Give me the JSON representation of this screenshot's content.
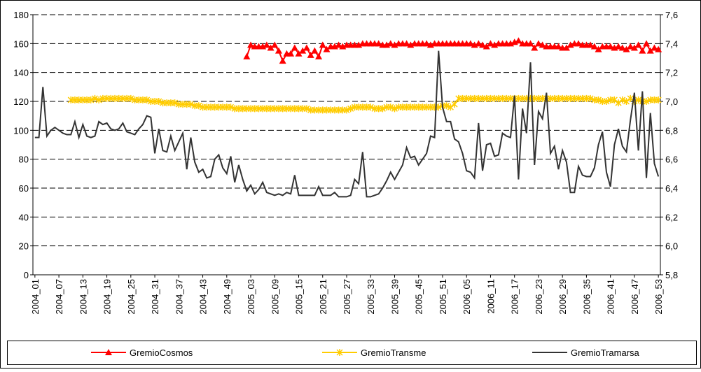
{
  "chart_data": {
    "type": "line",
    "categories": [
      "2004_01",
      null,
      null,
      null,
      null,
      null,
      "2004_07",
      null,
      null,
      null,
      null,
      null,
      "2004_13",
      null,
      null,
      null,
      null,
      null,
      "2004_19",
      null,
      null,
      null,
      null,
      null,
      "2004_25",
      null,
      null,
      null,
      null,
      null,
      "2004_31",
      null,
      null,
      null,
      null,
      null,
      "2004_37",
      null,
      null,
      null,
      null,
      null,
      "2004_43",
      null,
      null,
      null,
      null,
      null,
      "2004_49",
      null,
      null,
      null,
      null,
      null,
      "2005_03",
      null,
      null,
      null,
      null,
      null,
      "2005_09",
      null,
      null,
      null,
      null,
      null,
      "2005_15",
      null,
      null,
      null,
      null,
      null,
      "2005_21",
      null,
      null,
      null,
      null,
      null,
      "2005_27",
      null,
      null,
      null,
      null,
      null,
      "2005_33",
      null,
      null,
      null,
      null,
      null,
      "2005_39",
      null,
      null,
      null,
      null,
      null,
      "2005_45",
      null,
      null,
      null,
      null,
      null,
      "2005_51",
      null,
      null,
      null,
      null,
      null,
      "2006_05",
      null,
      null,
      null,
      null,
      null,
      "2006_11",
      null,
      null,
      null,
      null,
      null,
      "2006_17",
      null,
      null,
      null,
      null,
      null,
      "2006_23",
      null,
      null,
      null,
      null,
      null,
      "2006_29",
      null,
      null,
      null,
      null,
      null,
      "2006_35",
      null,
      null,
      null,
      null,
      null,
      "2006_41",
      null,
      null,
      null,
      null,
      null,
      "2006_47",
      null,
      null,
      null,
      null,
      null,
      "2006_53"
    ],
    "ylim": [
      0,
      180
    ],
    "yticks": [
      0,
      20,
      40,
      60,
      80,
      100,
      120,
      140,
      160,
      180
    ],
    "y2lim": [
      5.8,
      7.6
    ],
    "y2ticks": [
      {
        "value": 5.8,
        "label": "5,8"
      },
      {
        "value": 6.0,
        "label": "6,0"
      },
      {
        "value": 6.2,
        "label": "6,2"
      },
      {
        "value": 6.4,
        "label": "6,4"
      },
      {
        "value": 6.6,
        "label": "6,6"
      },
      {
        "value": 6.8,
        "label": "6,8"
      },
      {
        "value": 7.0,
        "label": "7,0"
      },
      {
        "value": 7.2,
        "label": "7,2"
      },
      {
        "value": 7.4,
        "label": "7,4"
      },
      {
        "value": 7.6,
        "label": "7,6"
      }
    ],
    "grid": true,
    "legend": "bottom",
    "series": [
      {
        "name": "GremioCosmos",
        "color": "#ff0000",
        "marker": "triangle",
        "values": [
          null,
          null,
          null,
          null,
          null,
          null,
          null,
          null,
          null,
          null,
          null,
          null,
          null,
          null,
          null,
          null,
          null,
          null,
          null,
          null,
          null,
          null,
          null,
          null,
          null,
          null,
          null,
          null,
          null,
          null,
          null,
          null,
          null,
          null,
          null,
          null,
          null,
          null,
          null,
          null,
          null,
          null,
          null,
          null,
          null,
          null,
          null,
          null,
          null,
          null,
          null,
          null,
          null,
          151,
          159,
          158,
          158,
          158,
          159,
          157,
          159,
          155,
          148,
          153,
          153,
          157,
          153,
          155,
          157,
          152,
          155,
          151,
          159,
          156,
          158,
          158,
          159,
          158,
          159,
          159,
          159,
          159,
          160,
          160,
          160,
          160,
          160,
          159,
          159,
          160,
          159,
          160,
          160,
          160,
          159,
          160,
          160,
          160,
          160,
          159,
          160,
          160,
          160,
          160,
          160,
          160,
          160,
          160,
          160,
          160,
          159,
          160,
          159,
          158,
          160,
          159,
          160,
          160,
          160,
          160,
          161,
          162,
          160,
          160,
          160,
          157,
          160,
          159,
          158,
          158,
          158,
          158,
          157,
          157,
          159,
          160,
          160,
          159,
          159,
          159,
          158,
          156,
          158,
          158,
          158,
          157,
          158,
          157,
          156,
          158,
          157,
          159,
          155,
          160,
          155,
          157,
          156
        ]
      },
      {
        "name": "GremioTransme",
        "color": "#ffcc00",
        "marker": "star",
        "axis": "y2",
        "values": [
          null,
          null,
          null,
          null,
          null,
          null,
          null,
          null,
          null,
          7.01,
          7.01,
          7.01,
          7.01,
          7.01,
          7.01,
          7.02,
          7.01,
          7.02,
          7.02,
          7.02,
          7.02,
          7.02,
          7.02,
          7.02,
          7.02,
          7.01,
          7.01,
          7.01,
          7.01,
          7.0,
          7.0,
          7.0,
          6.99,
          6.99,
          6.99,
          6.99,
          6.98,
          6.98,
          6.98,
          6.98,
          6.97,
          6.97,
          6.96,
          6.96,
          6.96,
          6.96,
          6.96,
          6.96,
          6.96,
          6.96,
          6.95,
          6.95,
          6.95,
          6.95,
          6.95,
          6.95,
          6.95,
          6.95,
          6.95,
          6.95,
          6.95,
          6.95,
          6.95,
          6.95,
          6.95,
          6.95,
          6.95,
          6.95,
          6.95,
          6.94,
          6.94,
          6.94,
          6.94,
          6.94,
          6.94,
          6.94,
          6.94,
          6.94,
          6.94,
          6.95,
          6.96,
          6.96,
          6.96,
          6.96,
          6.96,
          6.95,
          6.95,
          6.95,
          6.96,
          6.96,
          6.95,
          6.96,
          6.96,
          6.96,
          6.96,
          6.96,
          6.96,
          6.96,
          6.96,
          6.96,
          6.96,
          6.96,
          6.97,
          6.97,
          6.96,
          6.98,
          7.02,
          7.02,
          7.02,
          7.02,
          7.02,
          7.02,
          7.02,
          7.02,
          7.02,
          7.02,
          7.02,
          7.02,
          7.02,
          7.02,
          7.02,
          7.02,
          7.02,
          7.02,
          7.02,
          7.02,
          7.02,
          7.02,
          7.02,
          7.02,
          7.02,
          7.02,
          7.02,
          7.02,
          7.02,
          7.02,
          7.02,
          7.02,
          7.02,
          7.02,
          7.01,
          7.01,
          7.0,
          7.0,
          7.01,
          7.01,
          6.99,
          7.01,
          7.0,
          7.02,
          7.0,
          7.01,
          7.0,
          7.0,
          7.01,
          7.01,
          7.01
        ]
      },
      {
        "name": "GremioTramarsa",
        "color": "#333333",
        "marker": "none",
        "values": [
          95,
          95,
          130,
          96,
          100,
          102,
          100,
          98,
          97,
          97,
          106,
          95,
          104,
          96,
          95,
          96,
          106,
          104,
          105,
          101,
          100,
          101,
          105,
          99,
          98,
          97,
          101,
          104,
          110,
          109,
          84,
          101,
          86,
          85,
          96,
          86,
          92,
          98,
          73,
          95,
          78,
          71,
          73,
          67,
          68,
          80,
          83,
          74,
          70,
          82,
          64,
          76,
          66,
          58,
          62,
          56,
          59,
          64,
          57,
          56,
          55,
          56,
          55,
          57,
          56,
          69,
          55,
          55,
          55,
          55,
          55,
          61,
          55,
          55,
          55,
          57,
          54,
          54,
          54,
          55,
          66,
          63,
          85,
          54,
          54,
          55,
          56,
          60,
          65,
          71,
          66,
          71,
          76,
          88,
          81,
          82,
          76,
          80,
          84,
          96,
          95,
          155,
          116,
          106,
          106,
          94,
          92,
          84,
          72,
          71,
          67,
          105,
          72,
          90,
          91,
          82,
          83,
          98,
          96,
          95,
          124,
          66,
          115,
          98,
          147,
          76,
          113,
          108,
          126,
          84,
          89,
          73,
          86,
          78,
          57,
          57,
          75,
          69,
          68,
          68,
          74,
          90,
          99,
          71,
          61,
          90,
          101,
          89,
          85,
          107,
          126,
          86,
          127,
          67,
          112,
          77,
          68
        ]
      }
    ]
  }
}
